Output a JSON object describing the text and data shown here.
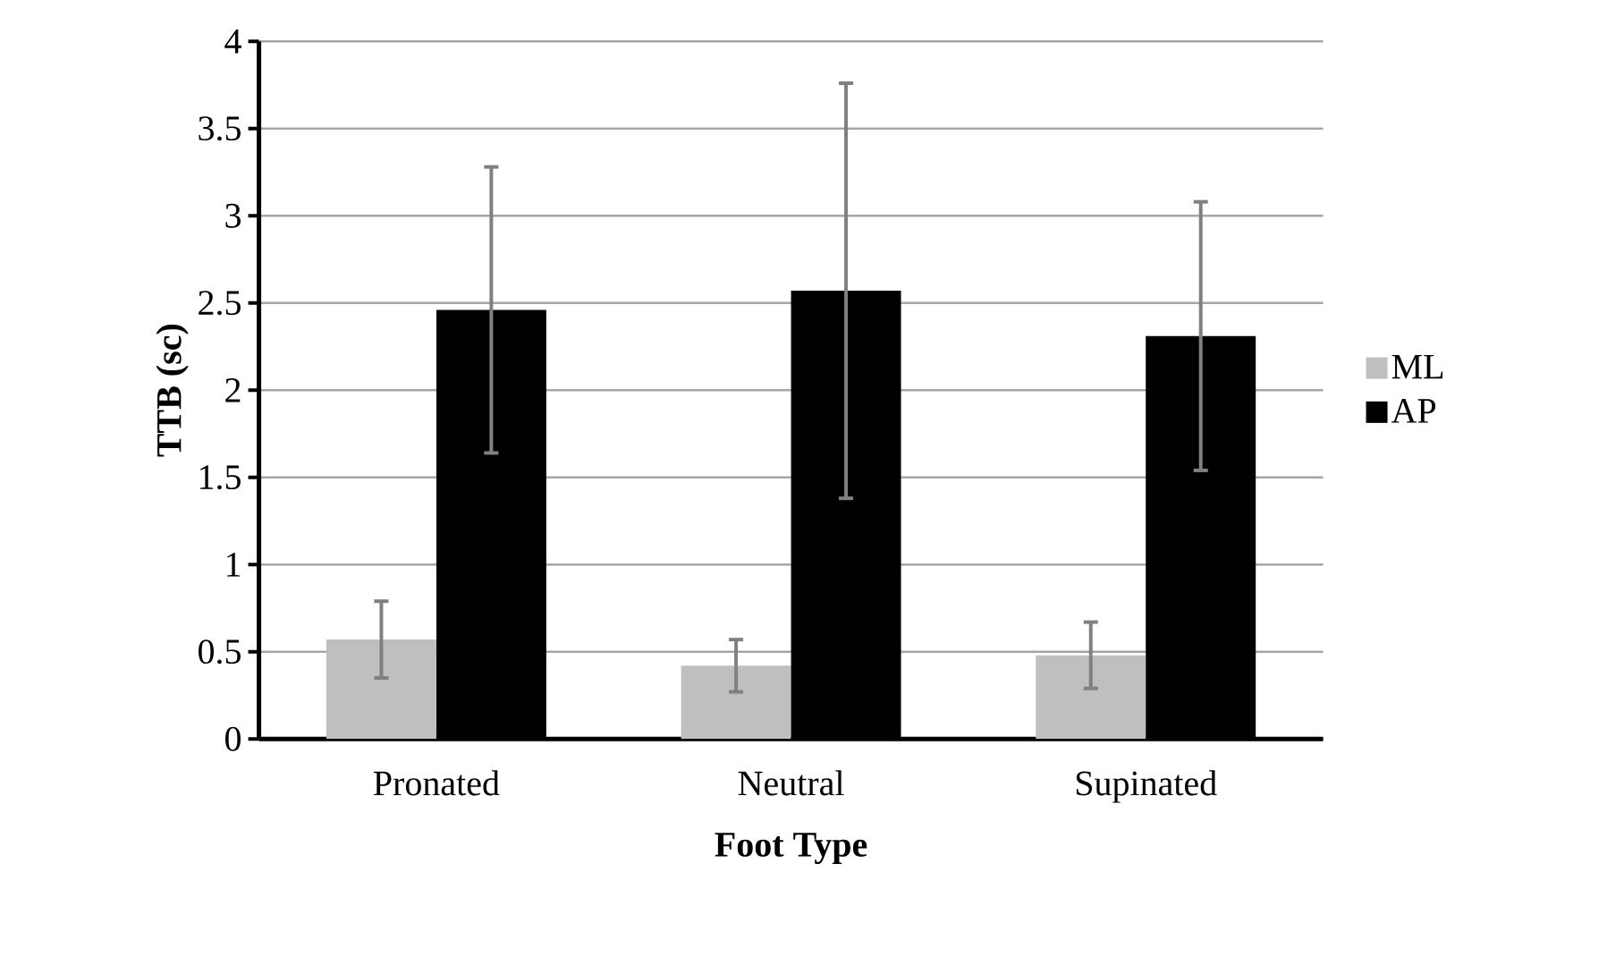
{
  "chart_data": {
    "type": "bar",
    "xlabel": "Foot Type",
    "ylabel": "TTB (sc)",
    "categories": [
      "Pronated",
      "Neutral",
      "Supinated"
    ],
    "series": [
      {
        "name": "ML",
        "color": "#bfbfbf",
        "values": [
          0.57,
          0.42,
          0.48
        ],
        "errors": [
          0.22,
          0.15,
          0.19
        ]
      },
      {
        "name": "AP",
        "color": "#000000",
        "values": [
          2.46,
          2.57,
          2.31
        ],
        "errors": [
          0.82,
          1.19,
          0.77
        ]
      }
    ],
    "ylim": [
      0,
      4
    ],
    "yticks": [
      0,
      0.5,
      1,
      1.5,
      2,
      2.5,
      3,
      3.5,
      4
    ],
    "grid": "y",
    "legend": "right"
  }
}
